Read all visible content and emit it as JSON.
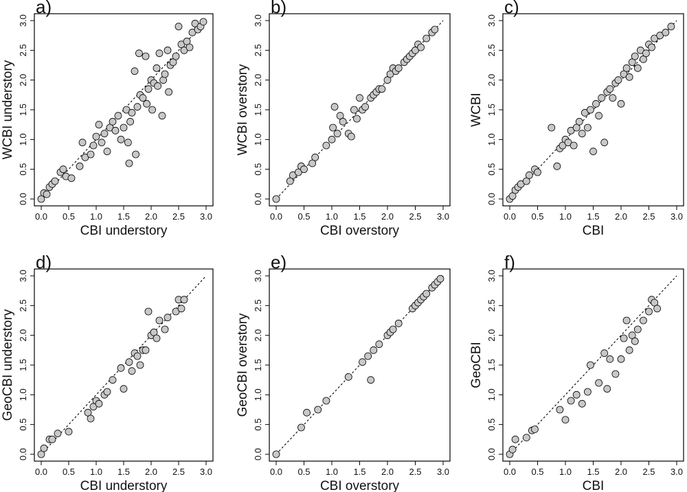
{
  "figure": {
    "layout": "2x3 grid of scatter plots"
  },
  "chart_data": [
    {
      "type": "scatter",
      "panel_label": "a)",
      "xlabel": "CBI understory",
      "ylabel": "WCBI understory",
      "xlim": [
        0,
        3
      ],
      "ylim": [
        0,
        3
      ],
      "xticks": [
        "0.0",
        "0.5",
        "1.0",
        "1.5",
        "2.0",
        "2.5",
        "3.0"
      ],
      "yticks": [
        "0.0",
        "0.5",
        "1.0",
        "1.5",
        "2.0",
        "2.5",
        "3.0"
      ],
      "reference_line": "y = x (dashed)",
      "points": [
        [
          0,
          0
        ],
        [
          0.05,
          0.1
        ],
        [
          0.1,
          0.08
        ],
        [
          0.15,
          0.2
        ],
        [
          0.2,
          0.25
        ],
        [
          0.25,
          0.3
        ],
        [
          0.35,
          0.45
        ],
        [
          0.4,
          0.5
        ],
        [
          0.45,
          0.38
        ],
        [
          0.55,
          0.35
        ],
        [
          0.7,
          0.55
        ],
        [
          0.75,
          0.95
        ],
        [
          0.8,
          0.7
        ],
        [
          0.9,
          0.75
        ],
        [
          0.95,
          0.9
        ],
        [
          1.0,
          1.05
        ],
        [
          1.05,
          1.25
        ],
        [
          1.1,
          0.95
        ],
        [
          1.15,
          1.1
        ],
        [
          1.2,
          0.8
        ],
        [
          1.25,
          1.2
        ],
        [
          1.3,
          1.3
        ],
        [
          1.35,
          1.15
        ],
        [
          1.4,
          1.4
        ],
        [
          1.45,
          1.0
        ],
        [
          1.5,
          1.2
        ],
        [
          1.55,
          1.5
        ],
        [
          1.58,
          0.95
        ],
        [
          1.6,
          0.6
        ],
        [
          1.62,
          1.3
        ],
        [
          1.65,
          1.45
        ],
        [
          1.7,
          2.15
        ],
        [
          1.72,
          0.75
        ],
        [
          1.75,
          1.55
        ],
        [
          1.78,
          2.45
        ],
        [
          1.8,
          1.75
        ],
        [
          1.85,
          1.7
        ],
        [
          1.9,
          2.4
        ],
        [
          1.92,
          1.6
        ],
        [
          1.95,
          1.85
        ],
        [
          2.0,
          2.0
        ],
        [
          2.02,
          1.5
        ],
        [
          2.05,
          1.95
        ],
        [
          2.1,
          2.2
        ],
        [
          2.12,
          1.9
        ],
        [
          2.15,
          2.45
        ],
        [
          2.2,
          1.4
        ],
        [
          2.22,
          2.0
        ],
        [
          2.25,
          2.1
        ],
        [
          2.3,
          2.5
        ],
        [
          2.32,
          1.8
        ],
        [
          2.35,
          2.25
        ],
        [
          2.4,
          2.3
        ],
        [
          2.45,
          2.4
        ],
        [
          2.5,
          2.9
        ],
        [
          2.55,
          2.6
        ],
        [
          2.6,
          2.5
        ],
        [
          2.65,
          2.65
        ],
        [
          2.7,
          2.55
        ],
        [
          2.75,
          2.8
        ],
        [
          2.8,
          2.95
        ],
        [
          2.85,
          2.85
        ],
        [
          2.9,
          2.9
        ],
        [
          2.95,
          2.98
        ]
      ]
    },
    {
      "type": "scatter",
      "panel_label": "b)",
      "xlabel": "CBI overstory",
      "ylabel": "WCBI overstory",
      "xlim": [
        0,
        3
      ],
      "ylim": [
        0,
        3
      ],
      "xticks": [
        "0.0",
        "0.5",
        "1.0",
        "1.5",
        "2.0",
        "2.5",
        "3.0"
      ],
      "yticks": [
        "0.0",
        "0.5",
        "1.0",
        "1.5",
        "2.0",
        "2.5",
        "3.0"
      ],
      "reference_line": "y = x (dashed)",
      "points": [
        [
          0,
          0
        ],
        [
          0.25,
          0.3
        ],
        [
          0.3,
          0.4
        ],
        [
          0.4,
          0.45
        ],
        [
          0.45,
          0.55
        ],
        [
          0.5,
          0.5
        ],
        [
          0.65,
          0.6
        ],
        [
          0.7,
          0.7
        ],
        [
          0.9,
          0.9
        ],
        [
          1.0,
          1.0
        ],
        [
          1.02,
          1.2
        ],
        [
          1.05,
          1.55
        ],
        [
          1.1,
          1.1
        ],
        [
          1.15,
          1.4
        ],
        [
          1.2,
          1.3
        ],
        [
          1.3,
          1.1
        ],
        [
          1.35,
          1.05
        ],
        [
          1.4,
          1.5
        ],
        [
          1.45,
          1.35
        ],
        [
          1.5,
          1.7
        ],
        [
          1.55,
          1.5
        ],
        [
          1.6,
          1.55
        ],
        [
          1.7,
          1.7
        ],
        [
          1.75,
          1.75
        ],
        [
          1.8,
          1.8
        ],
        [
          1.85,
          1.85
        ],
        [
          1.9,
          1.85
        ],
        [
          2.0,
          2.0
        ],
        [
          2.05,
          2.1
        ],
        [
          2.1,
          2.2
        ],
        [
          2.15,
          2.15
        ],
        [
          2.2,
          2.2
        ],
        [
          2.3,
          2.3
        ],
        [
          2.35,
          2.35
        ],
        [
          2.4,
          2.4
        ],
        [
          2.45,
          2.45
        ],
        [
          2.5,
          2.5
        ],
        [
          2.55,
          2.6
        ],
        [
          2.6,
          2.55
        ],
        [
          2.7,
          2.7
        ],
        [
          2.8,
          2.8
        ],
        [
          2.85,
          2.85
        ]
      ]
    },
    {
      "type": "scatter",
      "panel_label": "c)",
      "xlabel": "CBI",
      "ylabel": "WCBI",
      "xlim": [
        0,
        3
      ],
      "ylim": [
        0,
        3
      ],
      "xticks": [
        "0.0",
        "0.5",
        "1.0",
        "1.5",
        "2.0",
        "2.5",
        "3.0"
      ],
      "yticks": [
        "0.0",
        "0.5",
        "1.0",
        "1.5",
        "2.0",
        "2.5",
        "3.0"
      ],
      "reference_line": "y = x (dashed)",
      "points": [
        [
          0,
          0
        ],
        [
          0.05,
          0.05
        ],
        [
          0.1,
          0.15
        ],
        [
          0.15,
          0.2
        ],
        [
          0.2,
          0.25
        ],
        [
          0.3,
          0.3
        ],
        [
          0.35,
          0.4
        ],
        [
          0.45,
          0.5
        ],
        [
          0.5,
          0.45
        ],
        [
          0.75,
          1.2
        ],
        [
          0.85,
          0.55
        ],
        [
          0.9,
          0.85
        ],
        [
          0.95,
          0.9
        ],
        [
          1.0,
          1.0
        ],
        [
          1.05,
          0.95
        ],
        [
          1.1,
          1.15
        ],
        [
          1.15,
          0.9
        ],
        [
          1.2,
          1.2
        ],
        [
          1.25,
          1.3
        ],
        [
          1.3,
          1.1
        ],
        [
          1.35,
          1.45
        ],
        [
          1.4,
          1.2
        ],
        [
          1.45,
          1.5
        ],
        [
          1.5,
          0.8
        ],
        [
          1.55,
          1.6
        ],
        [
          1.6,
          1.4
        ],
        [
          1.65,
          1.7
        ],
        [
          1.7,
          0.95
        ],
        [
          1.75,
          1.8
        ],
        [
          1.8,
          1.85
        ],
        [
          1.85,
          1.7
        ],
        [
          1.9,
          1.95
        ],
        [
          1.95,
          2.0
        ],
        [
          2.0,
          1.6
        ],
        [
          2.05,
          2.1
        ],
        [
          2.1,
          2.2
        ],
        [
          2.15,
          2.05
        ],
        [
          2.2,
          2.3
        ],
        [
          2.25,
          2.4
        ],
        [
          2.3,
          2.2
        ],
        [
          2.35,
          2.5
        ],
        [
          2.4,
          2.35
        ],
        [
          2.45,
          2.45
        ],
        [
          2.5,
          2.6
        ],
        [
          2.55,
          2.55
        ],
        [
          2.6,
          2.7
        ],
        [
          2.7,
          2.75
        ],
        [
          2.8,
          2.8
        ],
        [
          2.9,
          2.9
        ]
      ]
    },
    {
      "type": "scatter",
      "panel_label": "d)",
      "xlabel": "CBI understory",
      "ylabel": "GeoCBI understory",
      "xlim": [
        0,
        3
      ],
      "ylim": [
        0,
        3
      ],
      "xticks": [
        "0.0",
        "0.5",
        "1.0",
        "1.5",
        "2.0",
        "2.5",
        "3.0"
      ],
      "yticks": [
        "0.0",
        "0.5",
        "1.0",
        "1.5",
        "2.0",
        "2.5",
        "3.0"
      ],
      "reference_line": "y = x (dashed)",
      "points": [
        [
          0,
          0
        ],
        [
          0.05,
          0.1
        ],
        [
          0.15,
          0.25
        ],
        [
          0.2,
          0.25
        ],
        [
          0.3,
          0.35
        ],
        [
          0.5,
          0.38
        ],
        [
          0.85,
          0.7
        ],
        [
          0.9,
          0.6
        ],
        [
          0.95,
          0.8
        ],
        [
          1.0,
          0.9
        ],
        [
          1.05,
          0.85
        ],
        [
          1.15,
          1.0
        ],
        [
          1.2,
          1.05
        ],
        [
          1.3,
          1.25
        ],
        [
          1.45,
          1.45
        ],
        [
          1.5,
          1.1
        ],
        [
          1.6,
          1.55
        ],
        [
          1.65,
          1.4
        ],
        [
          1.7,
          1.7
        ],
        [
          1.75,
          1.65
        ],
        [
          1.8,
          1.5
        ],
        [
          1.85,
          1.75
        ],
        [
          1.9,
          1.75
        ],
        [
          1.95,
          2.4
        ],
        [
          2.0,
          2.0
        ],
        [
          2.05,
          2.05
        ],
        [
          2.1,
          1.95
        ],
        [
          2.15,
          2.25
        ],
        [
          2.25,
          2.1
        ],
        [
          2.3,
          2.3
        ],
        [
          2.45,
          2.4
        ],
        [
          2.5,
          2.6
        ],
        [
          2.55,
          2.45
        ],
        [
          2.6,
          2.6
        ]
      ]
    },
    {
      "type": "scatter",
      "panel_label": "e)",
      "xlabel": "CBI overstory",
      "ylabel": "GeoCBI overstory",
      "xlim": [
        0,
        3
      ],
      "ylim": [
        0,
        3
      ],
      "xticks": [
        "0.0",
        "0.5",
        "1.0",
        "1.5",
        "2.0",
        "2.5",
        "3.0"
      ],
      "yticks": [
        "0.0",
        "0.5",
        "1.0",
        "1.5",
        "2.0",
        "2.5",
        "3.0"
      ],
      "reference_line": "y = x (dashed)",
      "points": [
        [
          0,
          0
        ],
        [
          0.45,
          0.45
        ],
        [
          0.55,
          0.7
        ],
        [
          0.75,
          0.75
        ],
        [
          0.9,
          0.9
        ],
        [
          1.3,
          1.3
        ],
        [
          1.55,
          1.55
        ],
        [
          1.65,
          1.65
        ],
        [
          1.7,
          1.25
        ],
        [
          1.75,
          1.75
        ],
        [
          1.85,
          1.85
        ],
        [
          2.0,
          2.0
        ],
        [
          2.05,
          2.05
        ],
        [
          2.1,
          2.1
        ],
        [
          2.2,
          2.2
        ],
        [
          2.45,
          2.45
        ],
        [
          2.5,
          2.5
        ],
        [
          2.55,
          2.55
        ],
        [
          2.6,
          2.6
        ],
        [
          2.65,
          2.65
        ],
        [
          2.7,
          2.7
        ],
        [
          2.8,
          2.8
        ],
        [
          2.85,
          2.85
        ],
        [
          2.9,
          2.9
        ],
        [
          2.95,
          2.95
        ]
      ]
    },
    {
      "type": "scatter",
      "panel_label": "f)",
      "xlabel": "CBI",
      "ylabel": "GeoCBI",
      "xlim": [
        0,
        3
      ],
      "ylim": [
        0,
        3
      ],
      "xticks": [
        "0.0",
        "0.5",
        "1.0",
        "1.5",
        "2.0",
        "2.5",
        "3.0"
      ],
      "yticks": [
        "0.0",
        "0.5",
        "1.0",
        "1.5",
        "2.0",
        "2.5",
        "3.0"
      ],
      "reference_line": "y = x (dashed)",
      "points": [
        [
          0,
          0
        ],
        [
          0.05,
          0.08
        ],
        [
          0.1,
          0.25
        ],
        [
          0.3,
          0.28
        ],
        [
          0.4,
          0.4
        ],
        [
          0.45,
          0.42
        ],
        [
          0.9,
          0.75
        ],
        [
          1.0,
          0.58
        ],
        [
          1.1,
          0.9
        ],
        [
          1.2,
          1.0
        ],
        [
          1.3,
          0.85
        ],
        [
          1.4,
          1.05
        ],
        [
          1.45,
          1.5
        ],
        [
          1.6,
          1.2
        ],
        [
          1.7,
          1.7
        ],
        [
          1.75,
          1.1
        ],
        [
          1.8,
          1.6
        ],
        [
          1.9,
          1.35
        ],
        [
          2.0,
          1.6
        ],
        [
          2.05,
          1.95
        ],
        [
          2.1,
          2.25
        ],
        [
          2.15,
          1.75
        ],
        [
          2.2,
          2.0
        ],
        [
          2.25,
          1.9
        ],
        [
          2.3,
          2.1
        ],
        [
          2.4,
          2.25
        ],
        [
          2.5,
          2.4
        ],
        [
          2.55,
          2.6
        ],
        [
          2.6,
          2.55
        ],
        [
          2.65,
          2.45
        ]
      ]
    }
  ]
}
